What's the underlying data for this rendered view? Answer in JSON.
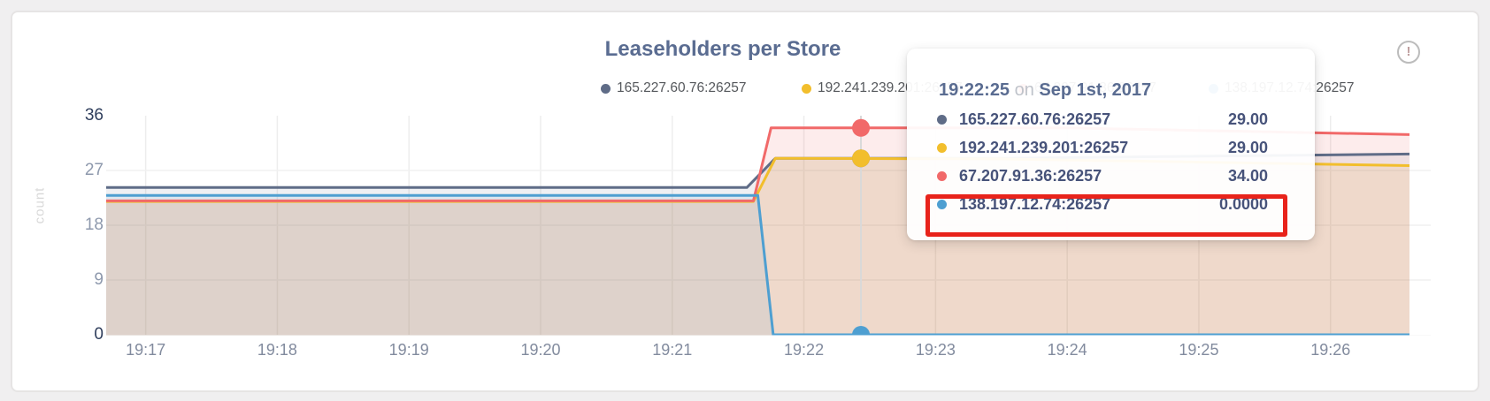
{
  "header": {
    "title": "Leaseholders per Store",
    "info_icon": "!"
  },
  "colors": {
    "accent_title": "#5a6c91",
    "annotation": "#e8231b",
    "grid": "#ededed",
    "hover_line": "#d9d9d9"
  },
  "legend": {
    "items": [
      {
        "label": "165.227.60.76:26257"
      },
      {
        "label": "192.241.239.201:26257"
      },
      {
        "label": "67.207.91.36:26257"
      },
      {
        "label": "138.197.12.74:26257"
      }
    ]
  },
  "tooltip": {
    "time": "19:22:25",
    "connector": " on ",
    "date": "Sep 1st, 2017",
    "rows": [
      {
        "label": "165.227.60.76:26257",
        "value": "29.00"
      },
      {
        "label": "192.241.239.201:26257",
        "value": "29.00"
      },
      {
        "label": "67.207.91.36:26257",
        "value": "34.00"
      },
      {
        "label": "138.197.12.74:26257",
        "value": "0.0000"
      }
    ],
    "highlighted_row_index": 3
  },
  "chart_data": {
    "type": "area",
    "title": "Leaseholders per Store",
    "xlabel": "",
    "ylabel": "count",
    "ylim": [
      0,
      36
    ],
    "y_ticks": [
      0,
      9,
      18,
      27,
      36
    ],
    "y_ticks_dark": [
      0,
      36
    ],
    "x_tick_labels": [
      "19:17",
      "19:18",
      "19:19",
      "19:20",
      "19:21",
      "19:22",
      "19:23",
      "19:24",
      "19:25",
      "19:26"
    ],
    "x_tick_seconds": [
      60,
      120,
      180,
      240,
      300,
      360,
      420,
      480,
      540,
      600
    ],
    "x_range_seconds": [
      42,
      636
    ],
    "grid": true,
    "legend_position": "top",
    "series": [
      {
        "name": "165.227.60.76:26257",
        "color": "#5F6C87",
        "points": [
          [
            42,
            24.2
          ],
          [
            334,
            24.2
          ],
          [
            347,
            29.0
          ],
          [
            450,
            29.0
          ],
          [
            636,
            29.7
          ]
        ]
      },
      {
        "name": "192.241.239.201:26257",
        "color": "#F2BE2C",
        "points": [
          [
            42,
            21.9
          ],
          [
            337,
            21.9
          ],
          [
            347,
            29.0
          ],
          [
            450,
            28.9
          ],
          [
            636,
            27.8
          ]
        ]
      },
      {
        "name": "67.207.91.36:26257",
        "color": "#F16969",
        "points": [
          [
            42,
            22.0
          ],
          [
            337,
            22.0
          ],
          [
            345,
            34.0
          ],
          [
            480,
            34.0
          ],
          [
            636,
            32.9
          ]
        ]
      },
      {
        "name": "138.197.12.74:26257",
        "color": "#4E9FD1",
        "points": [
          [
            42,
            22.9
          ],
          [
            339,
            22.9
          ],
          [
            346,
            0
          ],
          [
            636,
            0
          ]
        ]
      }
    ],
    "hover": {
      "t_seconds": 386,
      "time_label": "19:22:25",
      "date_label": "Sep 1st, 2017",
      "values": [
        29.0,
        29.0,
        34.0,
        0.0
      ]
    }
  }
}
